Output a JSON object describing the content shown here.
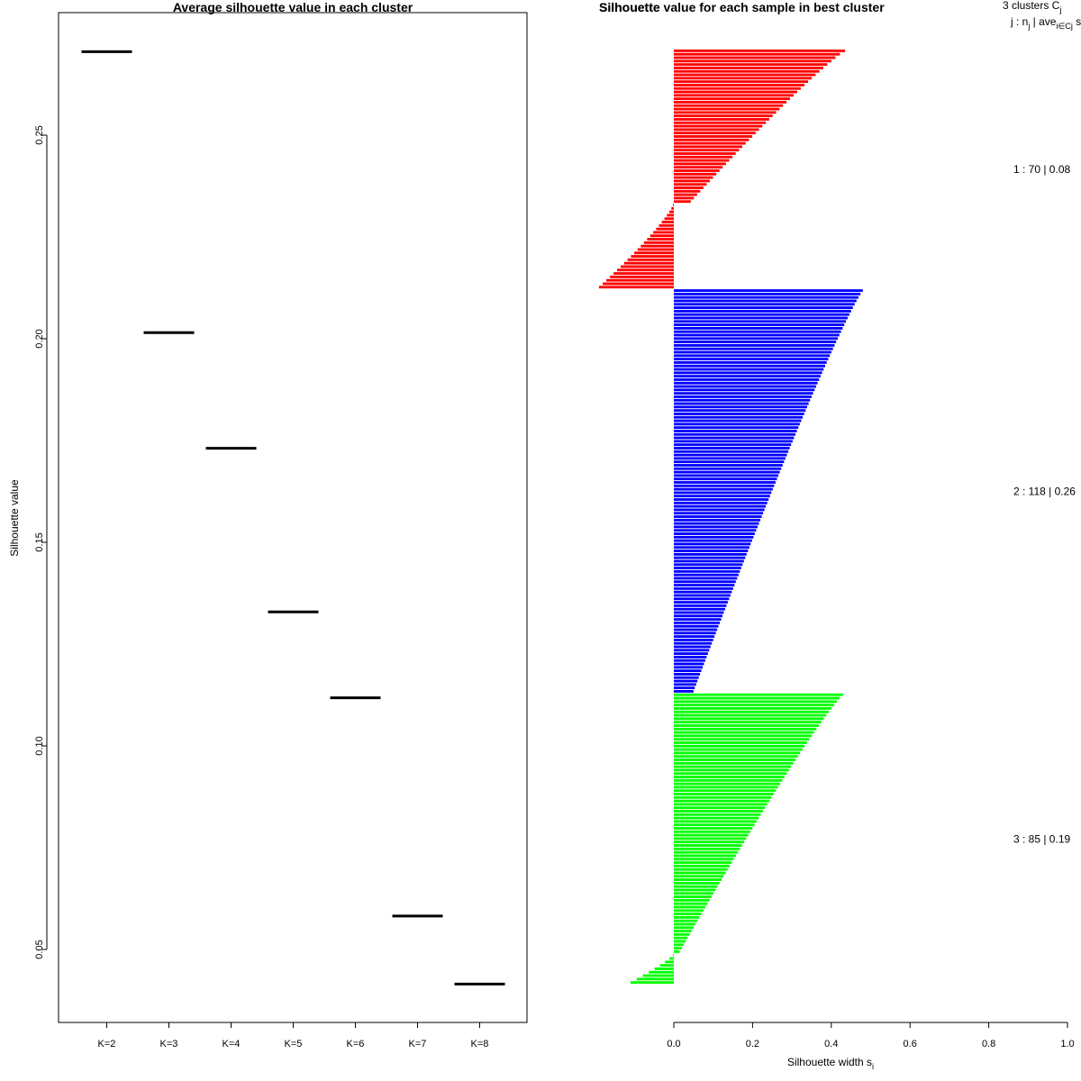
{
  "chart_data": [
    {
      "type": "scatter",
      "marker": "horizontal-segment",
      "title": "Average silhouette value in each cluster",
      "xlabel": "",
      "ylabel": "Silhouette value",
      "categories": [
        "K=2",
        "K=3",
        "K=4",
        "K=5",
        "K=6",
        "K=7",
        "K=8"
      ],
      "values": [
        0.2705,
        0.2015,
        0.1731,
        0.1329,
        0.1118,
        0.0582,
        0.0415
      ],
      "yticks": [
        0.05,
        0.1,
        0.15,
        0.2,
        0.25
      ],
      "ytick_labels": [
        "0.05",
        "0.10",
        "0.15",
        "0.20",
        "0.25"
      ],
      "ylim": [
        0.033,
        0.277
      ],
      "color": "#000000"
    },
    {
      "type": "bar",
      "orientation": "horizontal",
      "title": "Silhouette value for each sample in best cluster",
      "title_overlap_text": "Silhouette",
      "xlabel": "Silhouette width s",
      "xlabel_subscript": "i",
      "xlim": [
        0,
        1
      ],
      "xticks": [
        0.0,
        0.2,
        0.4,
        0.6,
        0.8,
        1.0
      ],
      "xtick_labels": [
        "0.0",
        "0.2",
        "0.4",
        "0.6",
        "0.8",
        "1.0"
      ],
      "legend": {
        "header_main": "3  clusters  C",
        "header_main_sub": "j",
        "header_cols_main": "j :  n",
        "header_cols_sub1": "j",
        "header_cols_mid": " | ave",
        "header_cols_sub2": "i∈Cj",
        "header_cols_tail": " s"
      },
      "clusters": [
        {
          "id": 1,
          "n": 70,
          "avg": 0.08,
          "label": "1 :  70  |  0.08",
          "color": "#ff0000",
          "range": [
            0.435,
            0.043
          ],
          "negative_count": 25,
          "negative_range": [
            -0.002,
            -0.19
          ]
        },
        {
          "id": 2,
          "n": 118,
          "avg": 0.26,
          "label": "2 :  118  |  0.26",
          "color": "#0000ff",
          "range": [
            0.48,
            0.05
          ],
          "negative_count": 0,
          "negative_range": [
            0,
            0
          ]
        },
        {
          "id": 3,
          "n": 85,
          "avg": 0.19,
          "label": "3 :  85  |  0.19",
          "color": "#00ff00",
          "range": [
            0.43,
            0.015
          ],
          "negative_count": 9,
          "negative_range": [
            -0.002,
            -0.11
          ]
        }
      ]
    }
  ]
}
